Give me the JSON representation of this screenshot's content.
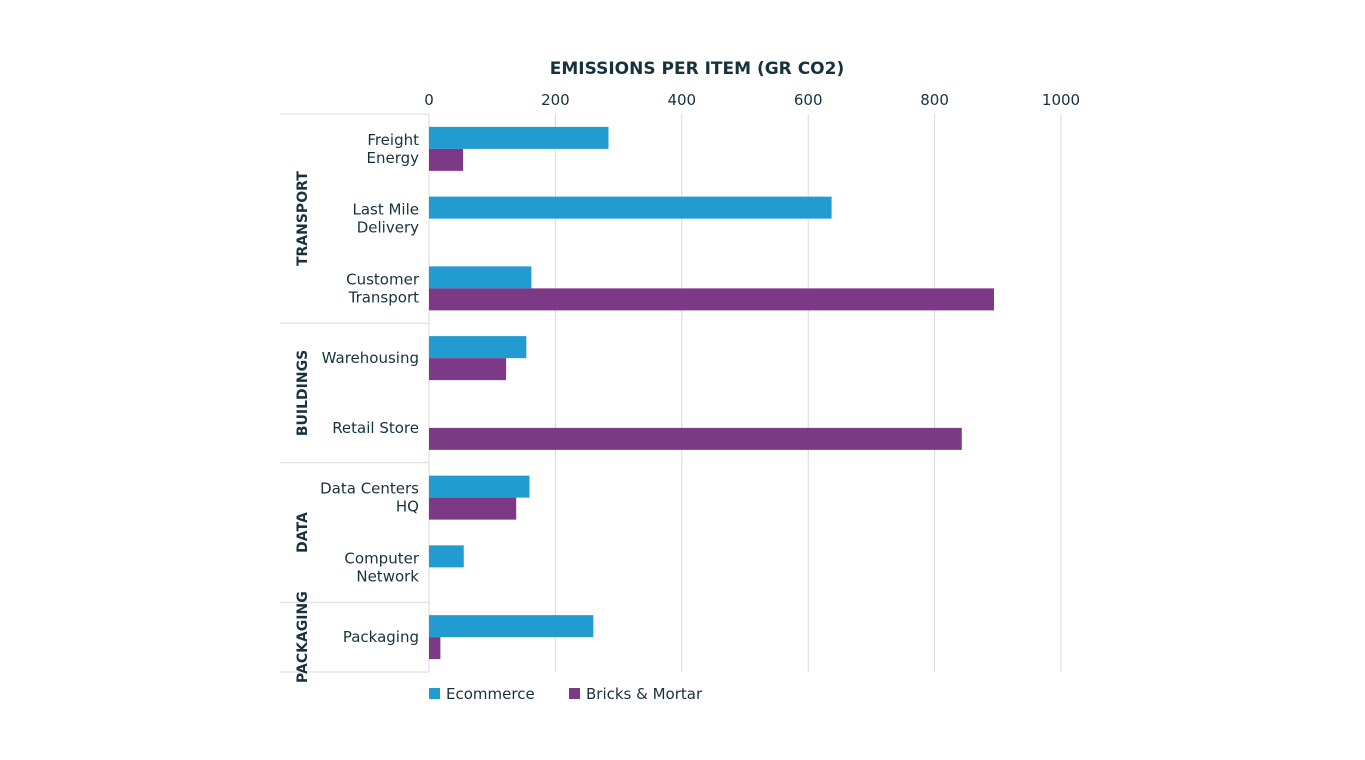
{
  "chart_data": {
    "type": "bar",
    "orientation": "horizontal",
    "title": "EMISSIONS PER ITEM (GR CO2)",
    "xlabel": "",
    "ylabel": "",
    "xlim": [
      0,
      1000
    ],
    "xticks": [
      "0",
      "200",
      "400",
      "600",
      "800",
      "1000"
    ],
    "grid": true,
    "legend_position": "bottom-left",
    "groups": [
      {
        "label": "TRANSPORT",
        "count": 3
      },
      {
        "label": "BUILDINGS",
        "count": 2
      },
      {
        "label": "DATA",
        "count": 2
      },
      {
        "label": "PACKAGING",
        "count": 1
      }
    ],
    "categories": [
      [
        "Freight",
        "Energy"
      ],
      [
        "Last Mile",
        "Delivery"
      ],
      [
        "Customer",
        "Transport"
      ],
      [
        "Warehousing"
      ],
      [
        "Retail Store"
      ],
      [
        "Data Centers",
        "HQ"
      ],
      [
        "Computer",
        "Network"
      ],
      [
        "Packaging"
      ]
    ],
    "series": [
      {
        "name": "Ecommerce",
        "color": "#229bd1",
        "values": [
          284,
          637,
          162,
          154,
          0,
          159,
          55,
          260
        ]
      },
      {
        "name": "Bricks & Mortar",
        "color": "#7c3a86",
        "values": [
          54,
          0,
          894,
          122,
          843,
          138,
          0,
          18
        ]
      }
    ]
  }
}
